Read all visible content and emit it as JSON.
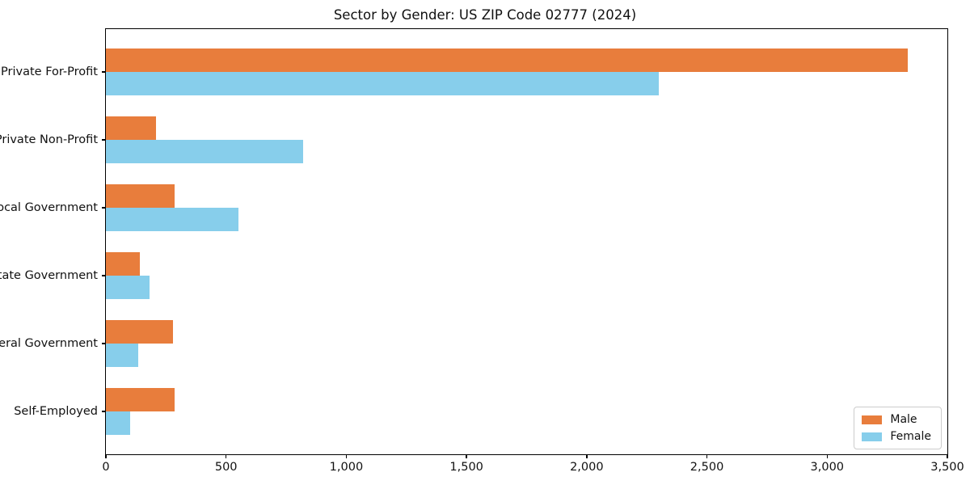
{
  "title": "Sector by Gender: US ZIP Code 02777 (2024)",
  "chart_data": {
    "type": "bar",
    "orientation": "horizontal",
    "title": "Sector by Gender: US ZIP Code 02777 (2024)",
    "categories": [
      "Private For-Profit",
      "Private Non-Profit",
      "Local Government",
      "State Government",
      "Federal Government",
      "Self-Employed"
    ],
    "series": [
      {
        "name": "Male",
        "color": "#E87D3C",
        "values": [
          3335,
          210,
          285,
          140,
          280,
          285
        ]
      },
      {
        "name": "Female",
        "color": "#87CEEB",
        "values": [
          2300,
          820,
          550,
          180,
          135,
          100
        ]
      }
    ],
    "xlim": [
      0,
      3500
    ],
    "xticks": [
      0,
      500,
      1000,
      1500,
      2000,
      2500,
      3000,
      3500
    ],
    "xtick_labels": [
      "0",
      "500",
      "1,000",
      "1,500",
      "2,000",
      "2,500",
      "3,000",
      "3,500"
    ],
    "xlabel": "",
    "ylabel": "",
    "grid": false,
    "legend": {
      "position": "lower-right",
      "entries": [
        "Male",
        "Female"
      ]
    }
  }
}
